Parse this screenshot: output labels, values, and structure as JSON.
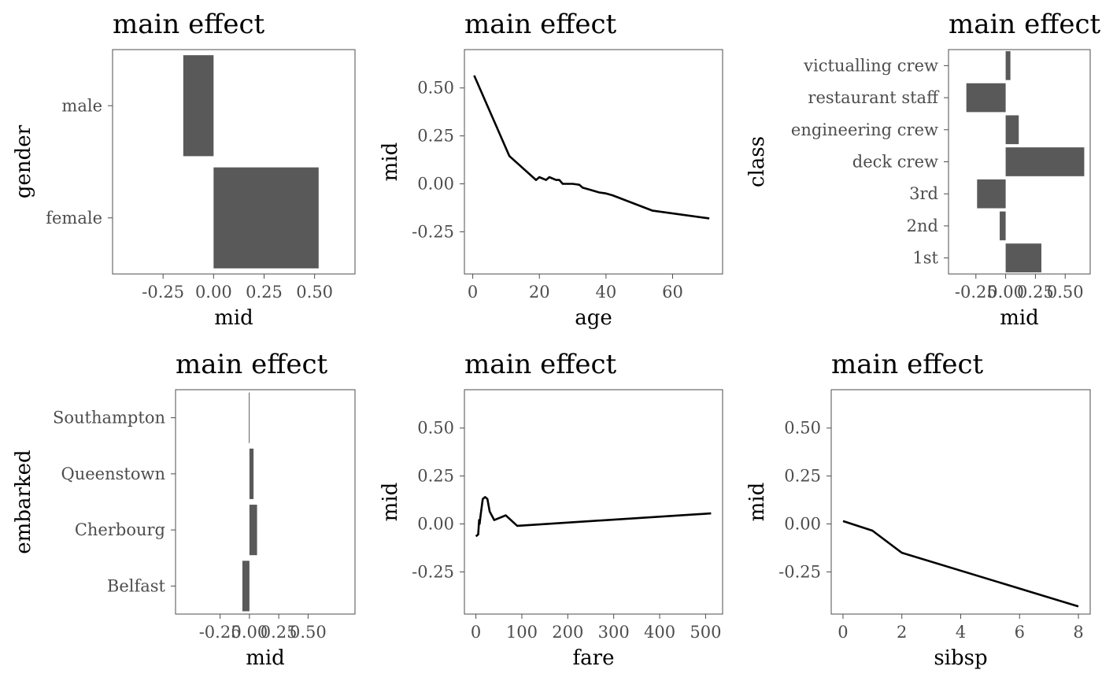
{
  "chart_data": [
    {
      "type": "bar",
      "orientation": "horizontal",
      "title": "main effect",
      "xlabel": "mid",
      "ylabel": "gender",
      "categories": [
        "female",
        "male"
      ],
      "values": [
        0.52,
        -0.15
      ],
      "xlim": [
        -0.5,
        0.7
      ],
      "xticks": [
        -0.25,
        0.0,
        0.25,
        0.5
      ],
      "xtick_labels": [
        "-0.25",
        "0.00",
        "0.25",
        "0.50"
      ],
      "grid": false,
      "color": "#595959"
    },
    {
      "type": "line",
      "title": "main effect",
      "xlabel": "age",
      "ylabel": "mid",
      "x": [
        0.42,
        11,
        19,
        20,
        22,
        23,
        25,
        26,
        27,
        28,
        30,
        32,
        33,
        35,
        38,
        40,
        42,
        45,
        48,
        54,
        71
      ],
      "y": [
        0.565,
        0.145,
        0.02,
        0.035,
        0.02,
        0.035,
        0.02,
        0.02,
        0.0,
        0.0,
        0.0,
        -0.005,
        -0.02,
        -0.03,
        -0.045,
        -0.05,
        -0.06,
        -0.08,
        -0.1,
        -0.14,
        -0.18
      ],
      "xlim": [
        -2.5,
        75
      ],
      "ylim": [
        -0.47,
        0.7
      ],
      "xticks": [
        0,
        20,
        40,
        60
      ],
      "yticks": [
        -0.25,
        0.0,
        0.25,
        0.5
      ],
      "xtick_labels": [
        "0",
        "20",
        "40",
        "60"
      ],
      "ytick_labels": [
        "-0.25",
        "0.00",
        "0.25",
        "0.50"
      ],
      "grid": false,
      "color": "#000000"
    },
    {
      "type": "bar",
      "orientation": "horizontal",
      "title": "main effect",
      "xlabel": "mid",
      "ylabel": "class",
      "categories": [
        "1st",
        "2nd",
        "3rd",
        "deck crew",
        "engineering crew",
        "restaurant staff",
        "victualling crew"
      ],
      "values": [
        0.3,
        -0.05,
        -0.24,
        0.66,
        0.11,
        -0.33,
        0.04
      ],
      "xlim": [
        -0.48,
        0.71
      ],
      "xticks": [
        -0.25,
        0.0,
        0.25,
        0.5
      ],
      "xtick_labels": [
        "-0.25",
        "0.00",
        "0.25",
        "0.50"
      ],
      "grid": false,
      "color": "#595959"
    },
    {
      "type": "bar",
      "orientation": "horizontal",
      "title": "main effect",
      "xlabel": "mid",
      "ylabel": "embarked",
      "categories": [
        "Belfast",
        "Cherbourg",
        "Queenstown",
        "Southampton"
      ],
      "values": [
        -0.06,
        0.065,
        0.035,
        -0.005
      ],
      "xlim": [
        -0.63,
        0.9
      ],
      "xticks": [
        -0.25,
        0.0,
        0.25,
        0.5
      ],
      "xtick_labels": [
        "-0.25",
        "0.00",
        "0.25",
        "0.50"
      ],
      "grid": false,
      "color": "#595959"
    },
    {
      "type": "line",
      "title": "main effect",
      "xlabel": "fare",
      "ylabel": "mid",
      "x": [
        0,
        5,
        7,
        8,
        10,
        15,
        20,
        25,
        30,
        40,
        65,
        90,
        512
      ],
      "y": [
        -0.065,
        -0.055,
        0.02,
        0.0,
        0.04,
        0.13,
        0.14,
        0.13,
        0.065,
        0.02,
        0.045,
        -0.01,
        0.055
      ],
      "xlim": [
        -25,
        537
      ],
      "ylim": [
        -0.47,
        0.7
      ],
      "xticks": [
        0,
        100,
        200,
        300,
        400,
        500
      ],
      "yticks": [
        -0.25,
        0.0,
        0.25,
        0.5
      ],
      "xtick_labels": [
        "0",
        "100",
        "200",
        "300",
        "400",
        "500"
      ],
      "ytick_labels": [
        "-0.25",
        "0.00",
        "0.25",
        "0.50"
      ],
      "grid": false,
      "color": "#000000"
    },
    {
      "type": "line",
      "title": "main effect",
      "xlabel": "sibsp",
      "ylabel": "mid",
      "x": [
        0,
        1,
        2,
        8
      ],
      "y": [
        0.015,
        -0.035,
        -0.15,
        -0.43
      ],
      "xlim": [
        -0.4,
        8.4
      ],
      "ylim": [
        -0.47,
        0.7
      ],
      "xticks": [
        0,
        2,
        4,
        6,
        8
      ],
      "yticks": [
        -0.25,
        0.0,
        0.25,
        0.5
      ],
      "xtick_labels": [
        "0",
        "2",
        "4",
        "6",
        "8"
      ],
      "ytick_labels": [
        "-0.25",
        "0.00",
        "0.25",
        "0.50"
      ],
      "grid": false,
      "color": "#000000"
    }
  ]
}
